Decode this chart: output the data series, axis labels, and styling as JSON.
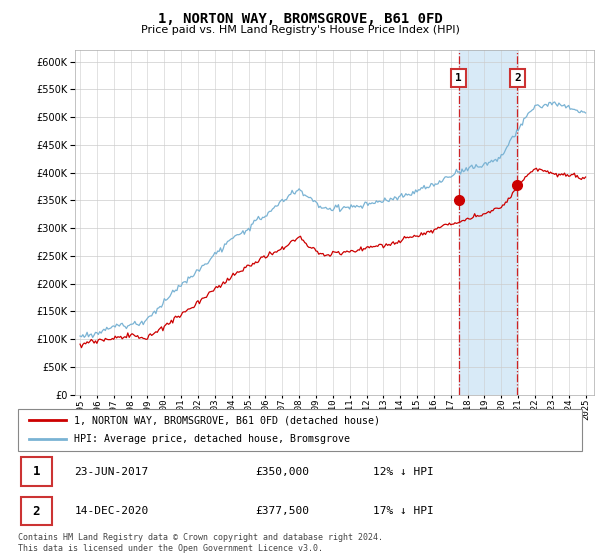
{
  "title": "1, NORTON WAY, BROMSGROVE, B61 0FD",
  "subtitle": "Price paid vs. HM Land Registry's House Price Index (HPI)",
  "legend_line1": "1, NORTON WAY, BROMSGROVE, B61 0FD (detached house)",
  "legend_line2": "HPI: Average price, detached house, Bromsgrove",
  "footer": "Contains HM Land Registry data © Crown copyright and database right 2024.\nThis data is licensed under the Open Government Licence v3.0.",
  "transaction1_label": "1",
  "transaction1_date": "23-JUN-2017",
  "transaction1_price": "£350,000",
  "transaction1_hpi": "12% ↓ HPI",
  "transaction2_label": "2",
  "transaction2_date": "14-DEC-2020",
  "transaction2_price": "£377,500",
  "transaction2_hpi": "17% ↓ HPI",
  "transaction1_x": 2017.47,
  "transaction2_x": 2020.95,
  "transaction1_y": 350000,
  "transaction2_y": 377500,
  "ylim": [
    0,
    620000
  ],
  "xlim": [
    1994.7,
    2025.5
  ],
  "red_color": "#cc0000",
  "blue_color": "#7ab3d4",
  "vline_color": "#cc0000",
  "grid_color": "#cccccc",
  "highlight_color": "#d8eaf7",
  "bg_color": "#ffffff",
  "box_border_color": "#cc3333"
}
